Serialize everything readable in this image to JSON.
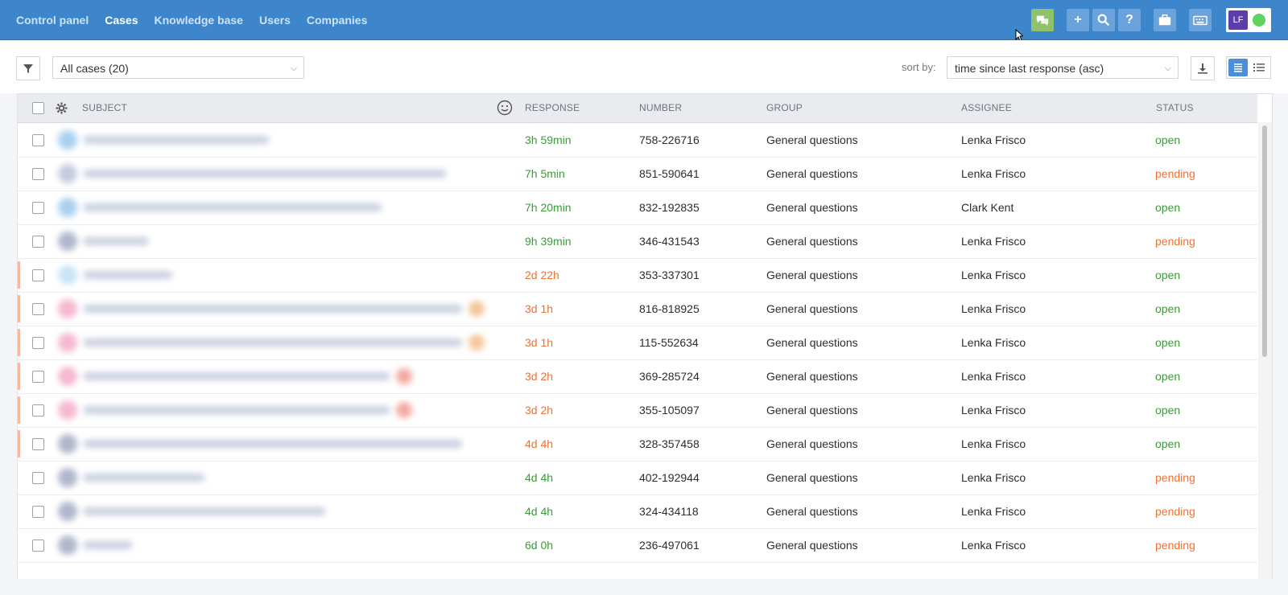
{
  "nav": {
    "items": [
      {
        "label": "Control panel",
        "active": false
      },
      {
        "label": "Cases",
        "active": true
      },
      {
        "label": "Knowledge base",
        "active": false
      },
      {
        "label": "Users",
        "active": false
      },
      {
        "label": "Companies",
        "active": false
      }
    ]
  },
  "topbar": {
    "icons": [
      "chat-icon",
      "plus-icon",
      "search-icon",
      "help-icon",
      "briefcase-icon",
      "keyboard-icon"
    ],
    "user_initials": "LF",
    "online_color": "#5fd35f",
    "bar_color": "#3d86cc"
  },
  "toolbar": {
    "filter_icon": "filter-icon",
    "case_filter_value": "All cases (20)",
    "sort_label": "sort by:",
    "sort_value": "time since last response (asc)",
    "download_icon": "download-icon",
    "view_icons": [
      "list-view-icon",
      "compact-view-icon"
    ]
  },
  "table": {
    "headers": {
      "subject": "SUBJECT",
      "response": "RESPONSE",
      "number": "NUMBER",
      "group": "GROUP",
      "assignee": "ASSIGNEE",
      "status": "STATUS"
    },
    "status_colors": {
      "open": "#3c9a38",
      "pending": "#ea7335"
    },
    "rows": [
      {
        "response": "3h 59min",
        "response_tone": "green",
        "number": "758-226716",
        "group": "General questions",
        "assignee": "Lenka Frisco",
        "status": "open",
        "flagged": false
      },
      {
        "response": "7h 5min",
        "response_tone": "green",
        "number": "851-590641",
        "group": "General questions",
        "assignee": "Lenka Frisco",
        "status": "pending",
        "flagged": false
      },
      {
        "response": "7h 20min",
        "response_tone": "green",
        "number": "832-192835",
        "group": "General questions",
        "assignee": "Clark Kent",
        "status": "open",
        "flagged": false
      },
      {
        "response": "9h 39min",
        "response_tone": "green",
        "number": "346-431543",
        "group": "General questions",
        "assignee": "Lenka Frisco",
        "status": "pending",
        "flagged": false
      },
      {
        "response": "2d 22h",
        "response_tone": "orange",
        "number": "353-337301",
        "group": "General questions",
        "assignee": "Lenka Frisco",
        "status": "open",
        "flagged": true
      },
      {
        "response": "3d 1h",
        "response_tone": "orange",
        "number": "816-818925",
        "group": "General questions",
        "assignee": "Lenka Frisco",
        "status": "open",
        "flagged": true
      },
      {
        "response": "3d 1h",
        "response_tone": "orange",
        "number": "115-552634",
        "group": "General questions",
        "assignee": "Lenka Frisco",
        "status": "open",
        "flagged": true
      },
      {
        "response": "3d 2h",
        "response_tone": "orange",
        "number": "369-285724",
        "group": "General questions",
        "assignee": "Lenka Frisco",
        "status": "open",
        "flagged": true
      },
      {
        "response": "3d 2h",
        "response_tone": "orange",
        "number": "355-105097",
        "group": "General questions",
        "assignee": "Lenka Frisco",
        "status": "open",
        "flagged": true
      },
      {
        "response": "4d 4h",
        "response_tone": "orange",
        "number": "328-357458",
        "group": "General questions",
        "assignee": "Lenka Frisco",
        "status": "open",
        "flagged": true
      },
      {
        "response": "4d 4h",
        "response_tone": "green",
        "number": "402-192944",
        "group": "General questions",
        "assignee": "Lenka Frisco",
        "status": "pending",
        "flagged": false
      },
      {
        "response": "4d 4h",
        "response_tone": "green",
        "number": "324-434118",
        "group": "General questions",
        "assignee": "Lenka Frisco",
        "status": "pending",
        "flagged": false
      },
      {
        "response": "6d 0h",
        "response_tone": "green",
        "number": "236-497061",
        "group": "General questions",
        "assignee": "Lenka Frisco",
        "status": "pending",
        "flagged": false
      }
    ]
  }
}
